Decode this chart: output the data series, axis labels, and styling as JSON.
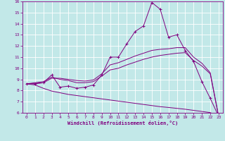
{
  "xlabel": "Windchill (Refroidissement éolien,°C)",
  "background_color": "#c2e8e8",
  "line_color": "#800080",
  "xlim": [
    -0.5,
    23.5
  ],
  "ylim": [
    6,
    16
  ],
  "xticks": [
    0,
    1,
    2,
    3,
    4,
    5,
    6,
    7,
    8,
    9,
    10,
    11,
    12,
    13,
    14,
    15,
    16,
    17,
    18,
    19,
    20,
    21,
    22,
    23
  ],
  "yticks": [
    6,
    7,
    8,
    9,
    10,
    11,
    12,
    13,
    14,
    15,
    16
  ],
  "grid_color": "#ffffff",
  "main_line_y": [
    8.6,
    8.6,
    8.7,
    9.4,
    8.3,
    8.4,
    8.2,
    8.3,
    8.5,
    9.4,
    11.0,
    11.0,
    12.2,
    13.3,
    13.8,
    15.9,
    15.3,
    12.8,
    13.0,
    11.6,
    10.6,
    8.8,
    7.3,
    5.7
  ],
  "line1_y": [
    8.6,
    8.7,
    8.8,
    9.2,
    9.0,
    8.9,
    8.7,
    8.7,
    8.8,
    9.3,
    9.85,
    10.0,
    10.3,
    10.55,
    10.8,
    11.0,
    11.15,
    11.25,
    11.35,
    11.4,
    10.7,
    10.2,
    9.5,
    5.7
  ],
  "line2_y": [
    8.6,
    8.65,
    8.7,
    9.1,
    9.1,
    9.0,
    8.9,
    8.85,
    8.95,
    9.5,
    10.3,
    10.5,
    10.8,
    11.1,
    11.35,
    11.6,
    11.7,
    11.75,
    11.85,
    11.85,
    11.0,
    10.45,
    9.6,
    5.7
  ],
  "line3_y": [
    8.6,
    8.5,
    8.2,
    7.95,
    7.8,
    7.65,
    7.55,
    7.45,
    7.35,
    7.25,
    7.15,
    7.05,
    6.95,
    6.85,
    6.75,
    6.65,
    6.55,
    6.48,
    6.4,
    6.32,
    6.22,
    6.12,
    6.02,
    5.7
  ]
}
